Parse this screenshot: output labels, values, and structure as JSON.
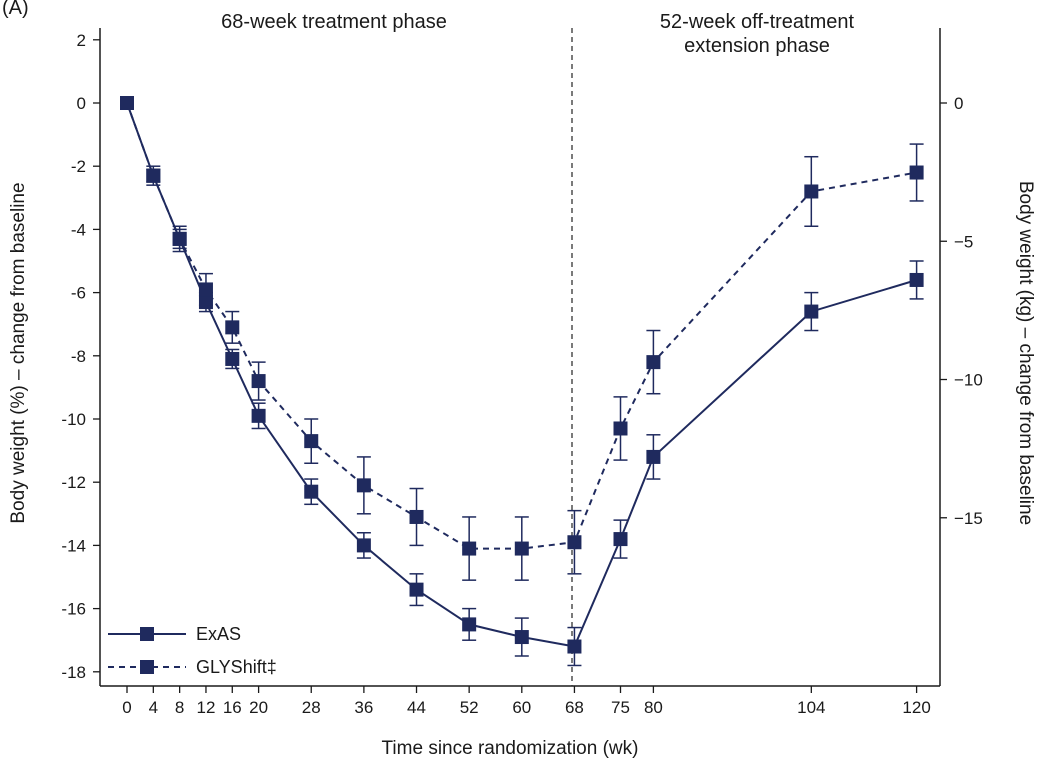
{
  "chart_data": {
    "type": "line",
    "panel_label": "(A)",
    "xlabel": "Time since randomization (wk)",
    "ylabel_left": "Body weight (%) – change from baseline",
    "ylabel_right": "Body weight (kg) – change from baseline",
    "x_ticks": [
      0,
      4,
      8,
      12,
      16,
      20,
      28,
      36,
      44,
      52,
      60,
      68,
      75,
      80,
      104,
      120
    ],
    "x_tick_labels": [
      "0",
      "4",
      "8",
      "12",
      "16",
      "20",
      "28",
      "36",
      "44",
      "52",
      "60",
      "68",
      "75",
      "80",
      "104",
      "120"
    ],
    "y_left_ticks": [
      2,
      0,
      -2,
      -4,
      -6,
      -8,
      -10,
      -12,
      -14,
      -16,
      -18
    ],
    "y_left_tick_labels": [
      "2",
      "0",
      "-2",
      "-4",
      "-6",
      "-8",
      "-10",
      "-12",
      "-14",
      "-16",
      "-18"
    ],
    "y_left_range": [
      -18.6,
      2.4
    ],
    "y_right_ticks": [
      0,
      -5,
      -10,
      -15
    ],
    "y_right_tick_labels": [
      "0",
      "−5",
      "−10",
      "−15"
    ],
    "y_right_kg_per_pct": 1.1428,
    "phase_boundary_week": 68,
    "phases": [
      {
        "label": "68-week treatment phase"
      },
      {
        "label_line1": "52-week off-treatment",
        "label_line2": "extension phase"
      }
    ],
    "legend": {
      "position": "bottom-left",
      "entries": [
        "ExAS",
        "GLYShift‡"
      ]
    },
    "series": [
      {
        "name": "ExAS",
        "line_style": "solid",
        "color": "#1f2a5e",
        "x": [
          0,
          4,
          8,
          12,
          16,
          20,
          28,
          36,
          44,
          52,
          60,
          68,
          75,
          80,
          104,
          120
        ],
        "y": [
          0,
          -2.3,
          -4.3,
          -6.3,
          -8.1,
          -9.9,
          -12.3,
          -14.0,
          -15.4,
          -16.5,
          -16.9,
          -17.2,
          -13.8,
          -11.2,
          -6.6,
          -5.6
        ],
        "err": [
          0.05,
          0.2,
          0.3,
          0.3,
          0.3,
          0.4,
          0.4,
          0.4,
          0.5,
          0.5,
          0.6,
          0.6,
          0.6,
          0.7,
          0.6,
          0.6
        ]
      },
      {
        "name": "GLYShift‡",
        "line_style": "dashed",
        "color": "#1f2a5e",
        "x": [
          0,
          4,
          8,
          12,
          16,
          20,
          28,
          36,
          44,
          52,
          60,
          68,
          75,
          80,
          104,
          120
        ],
        "y": [
          0,
          -2.3,
          -4.3,
          -5.9,
          -7.1,
          -8.8,
          -10.7,
          -12.1,
          -13.1,
          -14.1,
          -14.1,
          -13.9,
          -10.3,
          -8.2,
          -2.8,
          -2.2
        ],
        "err": [
          0.05,
          0.3,
          0.4,
          0.5,
          0.5,
          0.6,
          0.7,
          0.9,
          0.9,
          1.0,
          1.0,
          1.0,
          1.0,
          1.0,
          1.1,
          0.9
        ]
      }
    ]
  }
}
